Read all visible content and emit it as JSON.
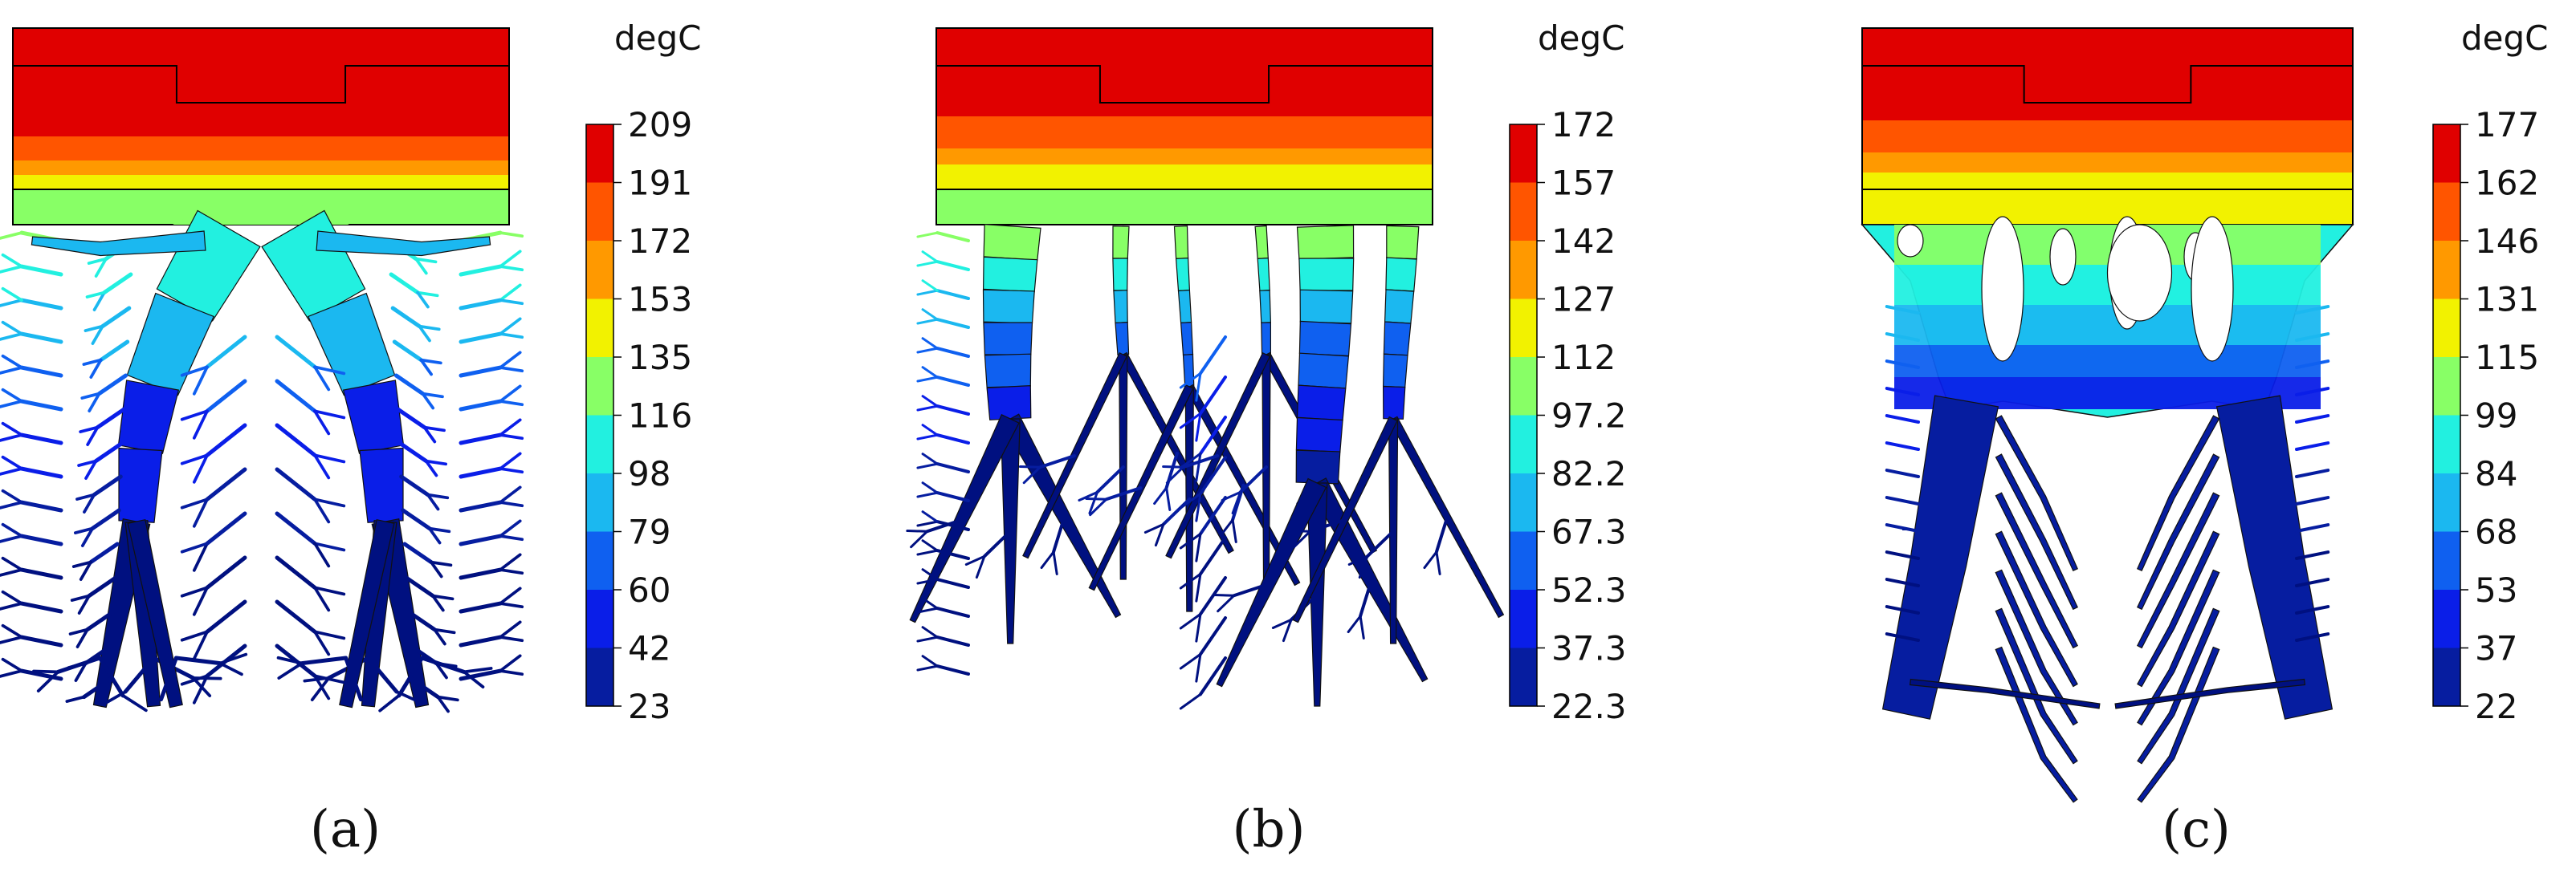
{
  "figure": {
    "panels": [
      {
        "id": "a",
        "label": "(a)",
        "unit": "degC",
        "ticks": [
          "209",
          "191",
          "172",
          "153",
          "135",
          "116",
          "98",
          "79",
          "60",
          "42",
          "23"
        ],
        "geometry": "tree"
      },
      {
        "id": "b",
        "label": "(b)",
        "unit": "degC",
        "ticks": [
          "172",
          "157",
          "142",
          "127",
          "112",
          "97.2",
          "82.2",
          "67.3",
          "52.3",
          "37.3",
          "22.3"
        ],
        "geometry": "fingers"
      },
      {
        "id": "c",
        "label": "(c)",
        "unit": "degC",
        "ticks": [
          "177",
          "162",
          "146",
          "131",
          "115",
          "99",
          "84",
          "68",
          "53",
          "37",
          "22"
        ],
        "geometry": "trunks"
      }
    ],
    "colormap": [
      "#e00000",
      "#ff5500",
      "#ff9900",
      "#f2f200",
      "#88ff66",
      "#22f0e0",
      "#1bb8f0",
      "#0f60f0",
      "#0a1ee8",
      "#061da0",
      "#001080"
    ]
  }
}
